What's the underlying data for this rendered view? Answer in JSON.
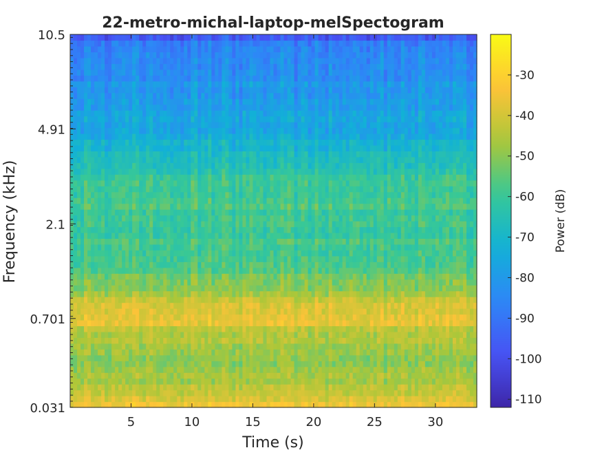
{
  "chart_data": {
    "type": "heatmap",
    "title": "22-metro-michal-laptop-melSpectogram",
    "xlabel": "Time (s)",
    "ylabel": "Frequency (kHz)",
    "xlim": [
      0,
      33.4
    ],
    "x_ticks": [
      5,
      10,
      15,
      20,
      25,
      30
    ],
    "x_tick_labels": [
      "5",
      "10",
      "15",
      "20",
      "25",
      "30"
    ],
    "y_scale": "mel",
    "y_ticks_khz": [
      0.031,
      0.701,
      2.1,
      4.91,
      10.5
    ],
    "y_tick_labels": [
      "0.031",
      "0.701",
      "2.1",
      "4.91",
      "10.5"
    ],
    "colormap": "parula",
    "colorbar": {
      "label": "Power (dB)",
      "range": [
        -112,
        -20
      ],
      "ticks": [
        -30,
        -40,
        -50,
        -60,
        -70,
        -80,
        -90,
        -100,
        -110
      ],
      "tick_labels": [
        "-30",
        "-40",
        "-50",
        "-60",
        "-70",
        "-80",
        "-90",
        "-100",
        "-110"
      ]
    },
    "mean_power_profile": [
      {
        "freq_khz": 0.031,
        "power_db": -30
      },
      {
        "freq_khz": 0.09,
        "power_db": -43
      },
      {
        "freq_khz": 0.3,
        "power_db": -50
      },
      {
        "freq_khz": 0.55,
        "power_db": -44
      },
      {
        "freq_khz": 0.701,
        "power_db": -36
      },
      {
        "freq_khz": 0.85,
        "power_db": -40
      },
      {
        "freq_khz": 1.1,
        "power_db": -52
      },
      {
        "freq_khz": 1.6,
        "power_db": -58
      },
      {
        "freq_khz": 2.1,
        "power_db": -60
      },
      {
        "freq_khz": 2.6,
        "power_db": -57
      },
      {
        "freq_khz": 3.3,
        "power_db": -62
      },
      {
        "freq_khz": 4.91,
        "power_db": -75
      },
      {
        "freq_khz": 7.5,
        "power_db": -82
      },
      {
        "freq_khz": 10.0,
        "power_db": -86
      },
      {
        "freq_khz": 10.5,
        "power_db": -102
      }
    ],
    "grid": false,
    "legend": "none"
  }
}
